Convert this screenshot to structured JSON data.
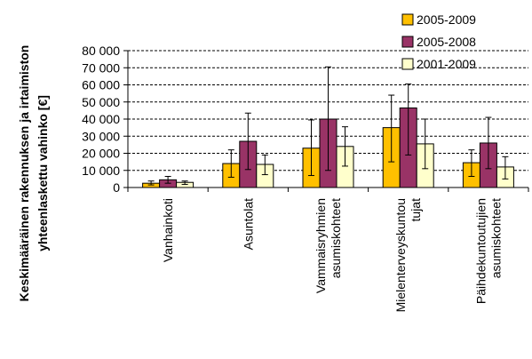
{
  "chart_data": {
    "type": "bar",
    "ylabel_lines": [
      "Keskimääräinen rakennuksen ja irtaimiston",
      "yhteenlaskettu vahinko [€]"
    ],
    "categories": [
      [
        "Vanhainkoti"
      ],
      [
        "Asuntolat"
      ],
      [
        "Vammaisryhmien",
        "asumiskohteet"
      ],
      [
        "Mielenterveyskuntou",
        "tujat"
      ],
      [
        "Päihdekuntoutujien",
        "asumiskohteet"
      ]
    ],
    "series": [
      {
        "name": "2005-2009",
        "color": "#ffc000",
        "values": [
          2500,
          14000,
          23000,
          35000,
          14500
        ],
        "err_low": [
          1500,
          6000,
          7000,
          15000,
          6500
        ],
        "err_high": [
          3800,
          22000,
          39500,
          54000,
          22000
        ]
      },
      {
        "name": "2005-2008",
        "color": "#993366",
        "values": [
          4500,
          27000,
          40000,
          46500,
          26000
        ],
        "err_low": [
          2500,
          10500,
          10000,
          19000,
          11000
        ],
        "err_high": [
          6500,
          43500,
          70500,
          60500,
          41000
        ]
      },
      {
        "name": "2001-2009",
        "color": "#ffffcc",
        "values": [
          3000,
          13500,
          24000,
          25500,
          12000
        ],
        "err_low": [
          1800,
          7500,
          12500,
          11000,
          5000
        ],
        "err_high": [
          3800,
          19000,
          35500,
          40000,
          18000
        ]
      }
    ],
    "yticks": [
      "0",
      "10 000",
      "20 000",
      "30 000",
      "40 000",
      "50 000",
      "60 000",
      "70 000",
      "80 000"
    ],
    "ylim": [
      0,
      80000
    ],
    "grid": true,
    "legend_position": "top-right"
  }
}
